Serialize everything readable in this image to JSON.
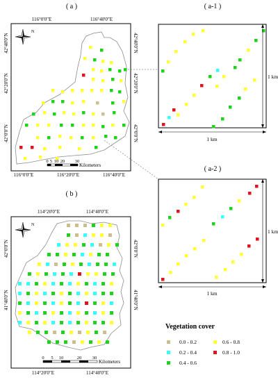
{
  "panels": {
    "a": {
      "label": "( a )",
      "top_ticks": [
        "116°0'0\"E",
        "116°40'0\"E"
      ],
      "bottom_ticks": [
        "116°0'0\"E",
        "116°20'0\"E",
        "116°40'0\"E"
      ],
      "left_ticks": [
        "42°40'0\"N",
        "42°20'0\"N",
        "42°0'0\"N"
      ],
      "right_ticks": [
        "42°40'0\"N",
        "42°20'0\"N",
        "42°0'0\"N"
      ],
      "scalebar": {
        "ticks": [
          "0",
          "5",
          "10",
          "20",
          "30"
        ],
        "unit": "Kilometers"
      }
    },
    "b": {
      "label": "( b )",
      "top_ticks": [
        "114°20'0\"E",
        "114°40'0\"E"
      ],
      "bottom_ticks": [
        "114°20'0\"E",
        "114°40'0\"E"
      ],
      "left_ticks": [
        "42°0'0\"N",
        "41°40'0\"N"
      ],
      "right_ticks": [
        "42°0'0\"N",
        "41°40'0\"N"
      ],
      "scalebar": {
        "ticks": [
          "0",
          "5",
          "10",
          "20",
          "30"
        ],
        "unit": "Kilometers"
      }
    },
    "a1": {
      "label": "( a-1 )",
      "width_label": "1 km",
      "height_label": "1 km"
    },
    "a2": {
      "label": "( a-2 )",
      "width_label": "1 km",
      "height_label": "1 km"
    }
  },
  "north_arrow_letter": "N",
  "legend": {
    "title": "Vegetation cover",
    "items": [
      {
        "label": "0.0 - 0.2",
        "color": "#cdbf8d"
      },
      {
        "label": "0.6 - 0.8",
        "color": "#ffff33"
      },
      {
        "label": "0.2 - 0.4",
        "color": "#33ffff"
      },
      {
        "label": "0.8 - 1.0",
        "color": "#e0141e"
      },
      {
        "label": "0.4 - 0.6",
        "color": "#1ed21e"
      }
    ]
  },
  "colors": {
    "c1": "#cdbf8d",
    "c2": "#33ffff",
    "c3": "#1ed21e",
    "c4": "#ffff33",
    "c5": "#e0141e",
    "border": "#8c8c8c",
    "leader": "#888888"
  }
}
